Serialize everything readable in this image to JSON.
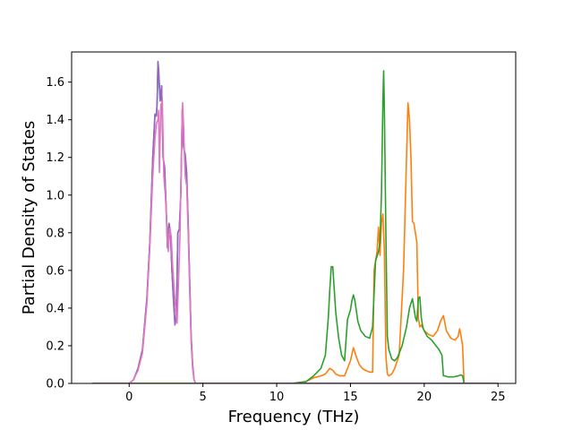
{
  "chart_data": {
    "type": "line",
    "title": "",
    "xlabel": "Frequency (THz)",
    "ylabel": "Partial Density of States",
    "xlim": [
      -3.9,
      26.2
    ],
    "ylim": [
      0.0,
      1.76
    ],
    "xticks": [
      0,
      5,
      10,
      15,
      20,
      25
    ],
    "xtick_labels": [
      "0",
      "5",
      "10",
      "15",
      "20",
      "25"
    ],
    "yticks": [
      0.0,
      0.2,
      0.4,
      0.6,
      0.8,
      1.0,
      1.2,
      1.4,
      1.6
    ],
    "ytick_labels": [
      "0.0",
      "0.2",
      "0.4",
      "0.6",
      "0.8",
      "1.0",
      "1.2",
      "1.4",
      "1.6"
    ],
    "grid": false,
    "series": [
      {
        "color": "#1f77b4",
        "x": [
          -2.5,
          0.0,
          0.3,
          0.6,
          0.9,
          1.2,
          1.4,
          1.6,
          1.75,
          1.85,
          1.9,
          1.95,
          2.0,
          2.1,
          2.2,
          2.3,
          2.4,
          2.5,
          2.6,
          2.7,
          2.8,
          2.9,
          3.0,
          3.1,
          3.2,
          3.3,
          3.4,
          3.5,
          3.6,
          3.65,
          3.7,
          3.75,
          3.8,
          3.85,
          3.9,
          4.0,
          4.1,
          4.2,
          4.3,
          4.4,
          4.5,
          25.0
        ],
        "values": [
          0.0,
          0.0,
          0.02,
          0.08,
          0.18,
          0.45,
          0.75,
          1.2,
          1.43,
          1.42,
          1.5,
          1.7,
          1.65,
          1.5,
          1.58,
          1.2,
          1.15,
          0.95,
          0.72,
          0.85,
          0.8,
          0.6,
          0.45,
          0.33,
          0.35,
          0.8,
          0.82,
          1.0,
          1.45,
          1.3,
          1.25,
          1.23,
          1.2,
          1.15,
          1.1,
          0.85,
          0.55,
          0.25,
          0.1,
          0.02,
          0.0,
          0.0
        ]
      },
      {
        "color": "#ff7f0e",
        "x": [
          -2.5,
          11.5,
          12.0,
          12.5,
          13.0,
          13.3,
          13.6,
          13.8,
          14.0,
          14.3,
          14.6,
          15.0,
          15.2,
          15.4,
          15.6,
          15.8,
          16.0,
          16.3,
          16.5,
          16.6,
          16.8,
          16.9,
          17.0,
          17.1,
          17.2,
          17.3,
          17.4,
          17.5,
          17.6,
          17.8,
          18.0,
          18.3,
          18.6,
          18.8,
          18.9,
          19.0,
          19.1,
          19.2,
          19.3,
          19.5,
          19.6,
          19.7,
          19.8,
          20.0,
          20.3,
          20.6,
          20.9,
          21.1,
          21.3,
          21.5,
          21.8,
          22.1,
          22.3,
          22.4,
          22.5,
          22.6,
          22.7,
          25.0
        ],
        "values": [
          0.0,
          0.0,
          0.01,
          0.03,
          0.04,
          0.05,
          0.08,
          0.07,
          0.05,
          0.04,
          0.04,
          0.12,
          0.19,
          0.14,
          0.1,
          0.08,
          0.07,
          0.06,
          0.06,
          0.6,
          0.7,
          0.83,
          0.68,
          0.85,
          0.9,
          0.7,
          0.15,
          0.05,
          0.04,
          0.05,
          0.08,
          0.15,
          0.6,
          1.2,
          1.49,
          1.4,
          1.2,
          0.86,
          0.85,
          0.75,
          0.35,
          0.3,
          0.31,
          0.28,
          0.26,
          0.25,
          0.28,
          0.33,
          0.36,
          0.28,
          0.24,
          0.23,
          0.25,
          0.29,
          0.25,
          0.2,
          0.0,
          0.0
        ]
      },
      {
        "color": "#2ca02c",
        "x": [
          -2.5,
          11.0,
          11.5,
          12.0,
          12.5,
          13.0,
          13.3,
          13.5,
          13.6,
          13.7,
          13.8,
          14.0,
          14.2,
          14.4,
          14.6,
          14.8,
          15.0,
          15.1,
          15.2,
          15.3,
          15.5,
          15.7,
          16.0,
          16.3,
          16.5,
          16.7,
          16.9,
          17.0,
          17.1,
          17.2,
          17.25,
          17.3,
          17.4,
          17.5,
          17.6,
          17.8,
          18.0,
          18.2,
          18.5,
          18.8,
          19.0,
          19.2,
          19.4,
          19.5,
          19.6,
          19.7,
          19.8,
          19.9,
          20.0,
          20.2,
          20.5,
          20.8,
          21.0,
          21.2,
          21.3,
          21.4,
          21.6,
          22.0,
          22.3,
          22.5,
          22.6,
          22.7,
          25.0
        ],
        "values": [
          0.0,
          0.0,
          0.005,
          0.01,
          0.04,
          0.08,
          0.15,
          0.35,
          0.5,
          0.62,
          0.62,
          0.38,
          0.24,
          0.15,
          0.12,
          0.34,
          0.39,
          0.44,
          0.47,
          0.44,
          0.33,
          0.28,
          0.25,
          0.24,
          0.3,
          0.65,
          0.7,
          0.75,
          1.0,
          1.5,
          1.66,
          1.45,
          0.8,
          0.25,
          0.18,
          0.13,
          0.12,
          0.14,
          0.2,
          0.3,
          0.4,
          0.45,
          0.35,
          0.33,
          0.45,
          0.46,
          0.35,
          0.3,
          0.28,
          0.25,
          0.23,
          0.2,
          0.18,
          0.15,
          0.04,
          0.04,
          0.035,
          0.035,
          0.04,
          0.045,
          0.04,
          0.0,
          0.0
        ]
      },
      {
        "color": "#9467bd",
        "x": [
          -2.5,
          0.0,
          0.3,
          0.6,
          0.9,
          1.2,
          1.4,
          1.6,
          1.75,
          1.85,
          1.9,
          1.95,
          2.0,
          2.1,
          2.2,
          2.3,
          2.4,
          2.5,
          2.6,
          2.7,
          2.8,
          2.9,
          3.0,
          3.1,
          3.2,
          3.3,
          3.4,
          3.5,
          3.6,
          3.65,
          3.7,
          3.75,
          3.8,
          3.85,
          3.9,
          4.0,
          4.1,
          4.2,
          4.3,
          4.4,
          4.5,
          25.0
        ],
        "values": [
          0.0,
          0.0,
          0.02,
          0.08,
          0.18,
          0.45,
          0.75,
          1.2,
          1.43,
          1.42,
          1.5,
          1.71,
          1.67,
          1.5,
          1.58,
          1.2,
          1.15,
          0.95,
          0.72,
          0.85,
          0.8,
          0.6,
          0.45,
          0.31,
          0.35,
          0.8,
          0.82,
          1.0,
          1.46,
          1.3,
          1.25,
          1.23,
          1.22,
          1.17,
          1.12,
          0.85,
          0.55,
          0.25,
          0.1,
          0.02,
          0.0,
          0.0
        ]
      },
      {
        "color": "#e377c2",
        "x": [
          -2.5,
          0.0,
          0.3,
          0.6,
          0.9,
          1.2,
          1.4,
          1.6,
          1.75,
          1.85,
          1.95,
          2.0,
          2.05,
          2.15,
          2.25,
          2.35,
          2.45,
          2.55,
          2.65,
          2.75,
          2.85,
          2.95,
          3.05,
          3.15,
          3.25,
          3.35,
          3.45,
          3.55,
          3.62,
          3.7,
          3.75,
          3.8,
          3.9,
          4.0,
          4.1,
          4.2,
          4.3,
          4.4,
          4.5,
          25.0
        ],
        "values": [
          0.0,
          0.0,
          0.02,
          0.07,
          0.16,
          0.42,
          0.72,
          1.1,
          1.3,
          1.38,
          1.4,
          1.45,
          1.12,
          1.48,
          1.5,
          1.1,
          1.0,
          0.85,
          0.7,
          0.82,
          0.78,
          0.62,
          0.5,
          0.4,
          0.32,
          0.55,
          0.8,
          1.25,
          1.49,
          1.35,
          1.2,
          1.1,
          1.05,
          0.8,
          0.5,
          0.22,
          0.08,
          0.02,
          0.0,
          0.0
        ]
      }
    ]
  }
}
